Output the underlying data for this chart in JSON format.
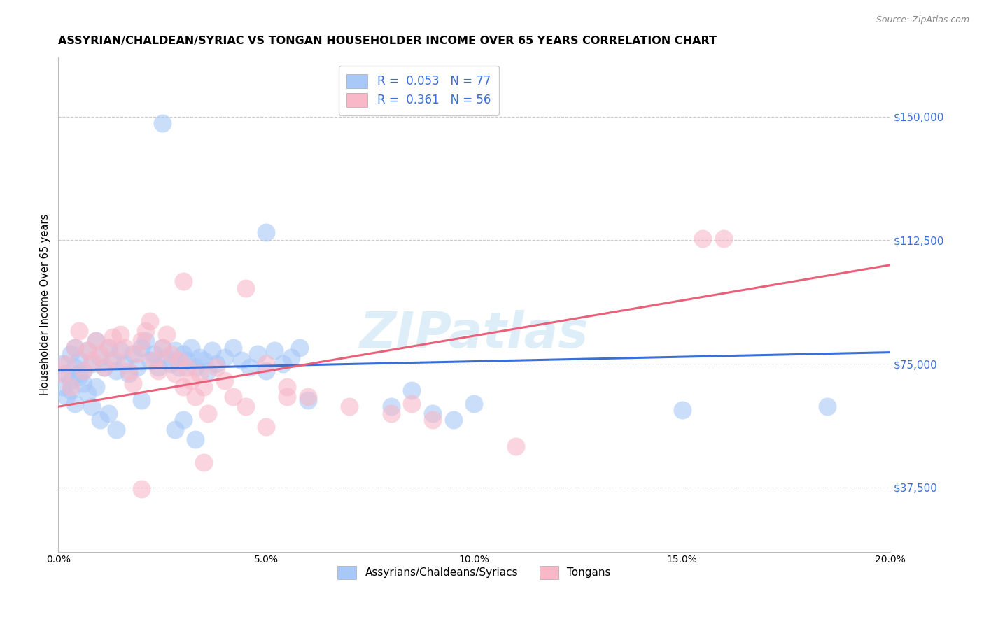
{
  "title": "ASSYRIAN/CHALDEAN/SYRIAC VS TONGAN HOUSEHOLDER INCOME OVER 65 YEARS CORRELATION CHART",
  "source": "Source: ZipAtlas.com",
  "ylabel": "Householder Income Over 65 years",
  "yticks": [
    37500,
    75000,
    112500,
    150000
  ],
  "ytick_labels": [
    "$37,500",
    "$75,000",
    "$112,500",
    "$150,000"
  ],
  "xlim": [
    0.0,
    0.2
  ],
  "ylim": [
    18000,
    168000
  ],
  "legend_label_blue": "Assyrians/Chaldeans/Syriacs",
  "legend_label_pink": "Tongans",
  "blue_scatter_color": "#a8c8f8",
  "pink_scatter_color": "#f8b8c8",
  "blue_line_color": "#3a6fd8",
  "pink_line_color": "#e8607a",
  "blue_R": 0.053,
  "blue_N": 77,
  "pink_R": 0.361,
  "pink_N": 56,
  "blue_line_x0": 0.0,
  "blue_line_y0": 73000,
  "blue_line_x1": 0.2,
  "blue_line_y1": 78500,
  "pink_line_x0": 0.0,
  "pink_line_y0": 62000,
  "pink_line_x1": 0.2,
  "pink_line_y1": 105000,
  "watermark_text": "ZIPatlas",
  "background_color": "#ffffff",
  "grid_color": "#cccccc",
  "ytick_color": "#3a6fd8",
  "title_fontsize": 11.5,
  "blue_x": [
    0.001,
    0.002,
    0.003,
    0.004,
    0.004,
    0.005,
    0.005,
    0.006,
    0.007,
    0.008,
    0.009,
    0.01,
    0.011,
    0.012,
    0.013,
    0.014,
    0.015,
    0.016,
    0.017,
    0.018,
    0.019,
    0.02,
    0.021,
    0.022,
    0.023,
    0.024,
    0.025,
    0.026,
    0.027,
    0.028,
    0.029,
    0.03,
    0.031,
    0.032,
    0.033,
    0.034,
    0.035,
    0.036,
    0.037,
    0.038,
    0.04,
    0.042,
    0.044,
    0.046,
    0.048,
    0.05,
    0.052,
    0.054,
    0.056,
    0.058,
    0.001,
    0.002,
    0.003,
    0.003,
    0.004,
    0.005,
    0.006,
    0.007,
    0.008,
    0.009,
    0.01,
    0.012,
    0.014,
    0.02,
    0.028,
    0.03,
    0.033,
    0.06,
    0.08,
    0.085,
    0.09,
    0.095,
    0.1,
    0.15,
    0.185,
    0.025,
    0.05
  ],
  "blue_y": [
    75000,
    72000,
    78000,
    74000,
    80000,
    71000,
    76000,
    73000,
    79000,
    75000,
    82000,
    77000,
    74000,
    80000,
    76000,
    73000,
    79000,
    75000,
    72000,
    78000,
    74000,
    80000,
    82000,
    76000,
    78000,
    74000,
    80000,
    77000,
    75000,
    79000,
    74000,
    78000,
    76000,
    80000,
    74000,
    77000,
    76000,
    73000,
    79000,
    75000,
    77000,
    80000,
    76000,
    74000,
    78000,
    73000,
    79000,
    75000,
    77000,
    80000,
    68000,
    65000,
    70000,
    67000,
    63000,
    72000,
    69000,
    66000,
    62000,
    68000,
    58000,
    60000,
    55000,
    64000,
    55000,
    58000,
    52000,
    64000,
    62000,
    67000,
    60000,
    58000,
    63000,
    61000,
    62000,
    148000,
    115000
  ],
  "pink_x": [
    0.001,
    0.002,
    0.003,
    0.004,
    0.005,
    0.006,
    0.007,
    0.008,
    0.009,
    0.01,
    0.011,
    0.012,
    0.013,
    0.014,
    0.015,
    0.016,
    0.017,
    0.018,
    0.019,
    0.02,
    0.021,
    0.022,
    0.023,
    0.024,
    0.025,
    0.026,
    0.027,
    0.028,
    0.029,
    0.03,
    0.031,
    0.032,
    0.033,
    0.034,
    0.035,
    0.036,
    0.038,
    0.04,
    0.042,
    0.045,
    0.05,
    0.055,
    0.06,
    0.03,
    0.045,
    0.05,
    0.055,
    0.07,
    0.08,
    0.085,
    0.09,
    0.11,
    0.155,
    0.16,
    0.035,
    0.02
  ],
  "pink_y": [
    72000,
    75000,
    68000,
    80000,
    85000,
    73000,
    79000,
    76000,
    82000,
    78000,
    74000,
    80000,
    83000,
    76000,
    84000,
    80000,
    73000,
    69000,
    78000,
    82000,
    85000,
    88000,
    76000,
    73000,
    80000,
    84000,
    78000,
    72000,
    76000,
    68000,
    74000,
    70000,
    65000,
    72000,
    68000,
    60000,
    74000,
    70000,
    65000,
    62000,
    56000,
    68000,
    65000,
    100000,
    98000,
    75000,
    65000,
    62000,
    60000,
    63000,
    58000,
    50000,
    113000,
    113000,
    45000,
    37000
  ]
}
